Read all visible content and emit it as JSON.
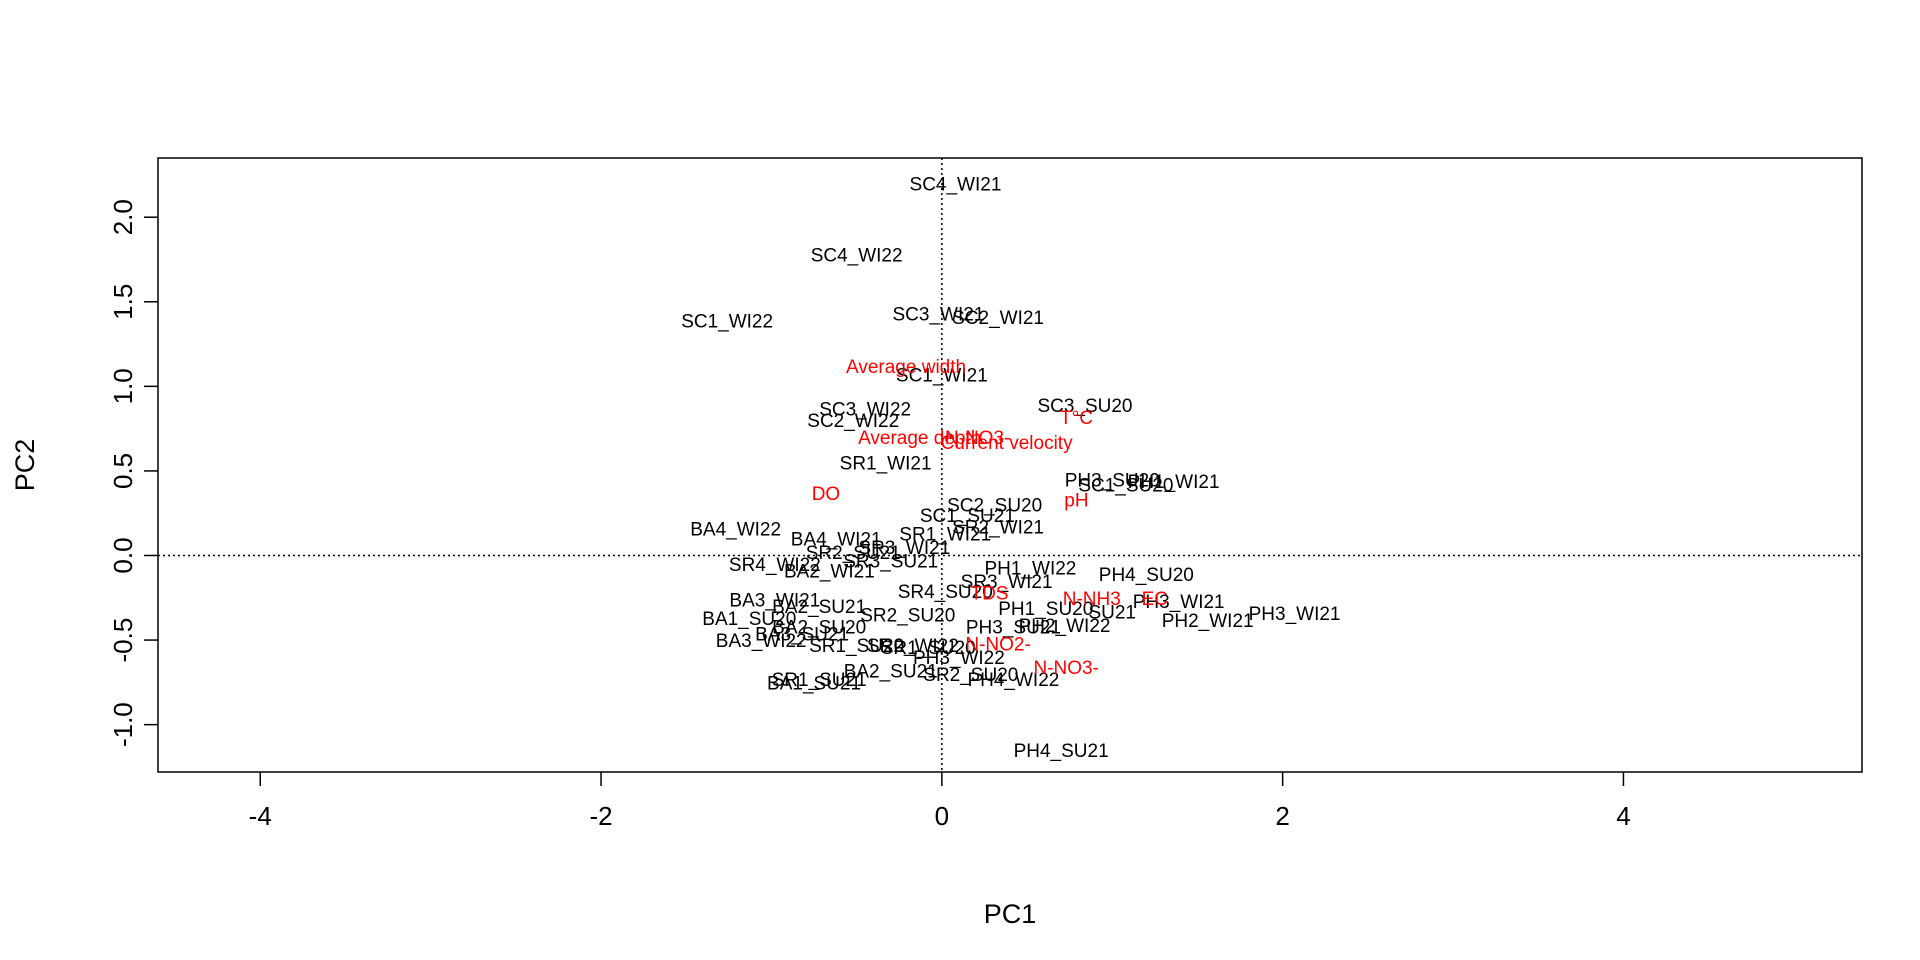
{
  "chart_data": {
    "type": "scatter",
    "title": "",
    "xlabel": "PC1",
    "ylabel": "PC2",
    "xlim": [
      -4.6,
      5.4
    ],
    "ylim": [
      -1.28,
      2.35
    ],
    "xticks": [
      -4,
      -2,
      0,
      2,
      4
    ],
    "yticks": [
      -1.0,
      -0.5,
      0.0,
      0.5,
      1.0,
      1.5,
      2.0
    ],
    "xtick_labels": [
      "-4",
      "-2",
      "0",
      "2",
      "4"
    ],
    "ytick_labels": [
      "-1.0",
      "-0.5",
      "0.0",
      "0.5",
      "1.0",
      "1.5",
      "2.0"
    ],
    "reference_lines": {
      "x": 0,
      "y": 0,
      "style": "dotted"
    },
    "grid": false,
    "colors": {
      "sites": "#000000",
      "variables": "#ff0000"
    },
    "sites": [
      {
        "label": "SC4_WI21",
        "x": 0.08,
        "y": 2.2
      },
      {
        "label": "SC4_WI22",
        "x": -0.5,
        "y": 1.78
      },
      {
        "label": "SC1_WI22",
        "x": -1.26,
        "y": 1.39
      },
      {
        "label": "SC3_WI21",
        "x": -0.02,
        "y": 1.43
      },
      {
        "label": "SC2_WI21",
        "x": 0.33,
        "y": 1.41
      },
      {
        "label": "SC1_WI21",
        "x": 0.0,
        "y": 1.07
      },
      {
        "label": "SC3_SU20",
        "x": 0.84,
        "y": 0.89
      },
      {
        "label": "SC3_WI22",
        "x": -0.45,
        "y": 0.87
      },
      {
        "label": "SC2_WI22",
        "x": -0.52,
        "y": 0.8
      },
      {
        "label": "SR1_WI21",
        "x": -0.33,
        "y": 0.55
      },
      {
        "label": "PH3_SU20",
        "x": 1.0,
        "y": 0.45
      },
      {
        "label": "SC1_SU20",
        "x": 1.08,
        "y": 0.42
      },
      {
        "label": "PH1_WI21",
        "x": 1.36,
        "y": 0.44
      },
      {
        "label": "SC2_SU20",
        "x": 0.31,
        "y": 0.3
      },
      {
        "label": "SC1_SU21",
        "x": 0.15,
        "y": 0.24
      },
      {
        "label": "SR2_WI21",
        "x": 0.33,
        "y": 0.17
      },
      {
        "label": "BA4_WI22",
        "x": -1.21,
        "y": 0.16
      },
      {
        "label": "BA4_WI21",
        "x": -0.62,
        "y": 0.1
      },
      {
        "label": "SR1_WI21",
        "x": 0.02,
        "y": 0.13
      },
      {
        "label": "SR3_WI21",
        "x": -0.22,
        "y": 0.05
      },
      {
        "label": "SR2_SU21",
        "x": -0.52,
        "y": 0.02
      },
      {
        "label": "SR3_SU21",
        "x": -0.3,
        "y": -0.03
      },
      {
        "label": "SR4_WI22",
        "x": -0.98,
        "y": -0.05
      },
      {
        "label": "BA2_WI21",
        "x": -0.66,
        "y": -0.09
      },
      {
        "label": "PH1_WI22",
        "x": 0.52,
        "y": -0.07
      },
      {
        "label": "PH4_SU20",
        "x": 1.2,
        "y": -0.11
      },
      {
        "label": "SR3_WI21",
        "x": 0.38,
        "y": -0.15
      },
      {
        "label": "SR4_SU20",
        "x": 0.02,
        "y": -0.21
      },
      {
        "label": "BA3_WI21",
        "x": -0.98,
        "y": -0.26
      },
      {
        "label": "BA2_SU21",
        "x": -0.72,
        "y": -0.3
      },
      {
        "label": "PH1_SU20",
        "x": 0.61,
        "y": -0.31
      },
      {
        "label": "SU21",
        "x": 1.0,
        "y": -0.33
      },
      {
        "label": "PH3_WI21",
        "x": 1.39,
        "y": -0.27
      },
      {
        "label": "PH3_WI21",
        "x": 2.07,
        "y": -0.34
      },
      {
        "label": "PH2_WI21",
        "x": 1.56,
        "y": -0.38
      },
      {
        "label": "BA1_SU20",
        "x": -1.13,
        "y": -0.37
      },
      {
        "label": "SR2_SU20",
        "x": -0.2,
        "y": -0.35
      },
      {
        "label": "BA2_SU20",
        "x": -0.72,
        "y": -0.42
      },
      {
        "label": "BA3_SU21",
        "x": -0.82,
        "y": -0.46
      },
      {
        "label": "PH3_SU21",
        "x": 0.42,
        "y": -0.42
      },
      {
        "label": "PH2_WI22",
        "x": 0.72,
        "y": -0.41
      },
      {
        "label": "BA3_WI22",
        "x": -1.06,
        "y": -0.5
      },
      {
        "label": "SR1_SU20",
        "x": -0.5,
        "y": -0.53
      },
      {
        "label": "SR2_WI22",
        "x": -0.17,
        "y": -0.53
      },
      {
        "label": "SR1_SU20",
        "x": -0.08,
        "y": -0.54
      },
      {
        "label": "PH3_WI22",
        "x": 0.1,
        "y": -0.6
      },
      {
        "label": "BA2_SU21",
        "x": -0.3,
        "y": -0.68
      },
      {
        "label": "SR2_SU20",
        "x": 0.17,
        "y": -0.7
      },
      {
        "label": "PH4_WI22",
        "x": 0.42,
        "y": -0.73
      },
      {
        "label": "SR1_SU21",
        "x": -0.72,
        "y": -0.73
      },
      {
        "label": "BA1_SU21",
        "x": -0.75,
        "y": -0.75
      },
      {
        "label": "PH4_SU21",
        "x": 0.7,
        "y": -1.15
      }
    ],
    "variables": [
      {
        "label": "Average width",
        "x": -0.21,
        "y": 1.12
      },
      {
        "label": "T°C",
        "x": 0.79,
        "y": 0.82
      },
      {
        "label": "N-NO3-",
        "x": 0.21,
        "y": 0.7
      },
      {
        "label": "Average depth",
        "x": -0.13,
        "y": 0.7
      },
      {
        "label": "Current velocity",
        "x": 0.38,
        "y": 0.67
      },
      {
        "label": "DO",
        "x": -0.68,
        "y": 0.37
      },
      {
        "label": "pH",
        "x": 0.79,
        "y": 0.33
      },
      {
        "label": "N-NH3",
        "x": 0.88,
        "y": -0.25
      },
      {
        "label": "EC",
        "x": 1.25,
        "y": -0.25
      },
      {
        "label": "TDS",
        "x": 0.28,
        "y": -0.22
      },
      {
        "label": "N-NO2-",
        "x": 0.33,
        "y": -0.52
      },
      {
        "label": "N-NO3-",
        "x": 0.73,
        "y": -0.66
      }
    ]
  }
}
